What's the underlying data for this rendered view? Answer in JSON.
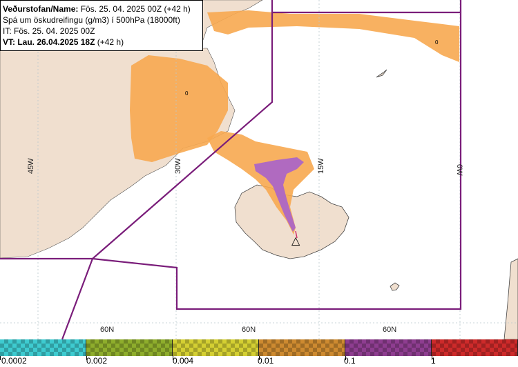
{
  "header": {
    "line1_label": "Veðurstofan/Name:",
    "line1_value": "Fös. 25. 04. 2025 00Z (+42 h)",
    "line2": "Spá um öskudreifingu (g/m3) í 500hPa (18000ft)",
    "line3": "IT: Fös. 25. 04. 2025 00Z",
    "line4_label": "VT: Lau. 26.04.2025 18Z",
    "line4_value": "(+42 h)"
  },
  "grid_labels": {
    "lon_45w": "45W",
    "lon_30w": "30W",
    "lon_15w": "15W",
    "lon_0w": "0W",
    "lat_left": "60N",
    "lat_mid": "60N",
    "lat_right": "60N"
  },
  "map_marks": {
    "volcano_symbol": "△",
    "small_zero_1": "0",
    "small_zero_2": "0"
  },
  "legend": {
    "items": [
      {
        "color": "#3ecbd0"
      },
      {
        "color": "#8ead2c"
      },
      {
        "color": "#d4cf32"
      },
      {
        "color": "#cd8a30"
      },
      {
        "color": "#8e3d90"
      },
      {
        "color": "#cd2a2a"
      }
    ],
    "labels": [
      "0.0002",
      "0.002",
      "0.004",
      "0.01",
      "0.1",
      "1"
    ]
  },
  "colors": {
    "land": "#f0dfcf",
    "ash_low": "#f7a850",
    "ash_high": "#b06ac0",
    "border": "#7a1d7a",
    "grid": "#b8c6cc"
  }
}
